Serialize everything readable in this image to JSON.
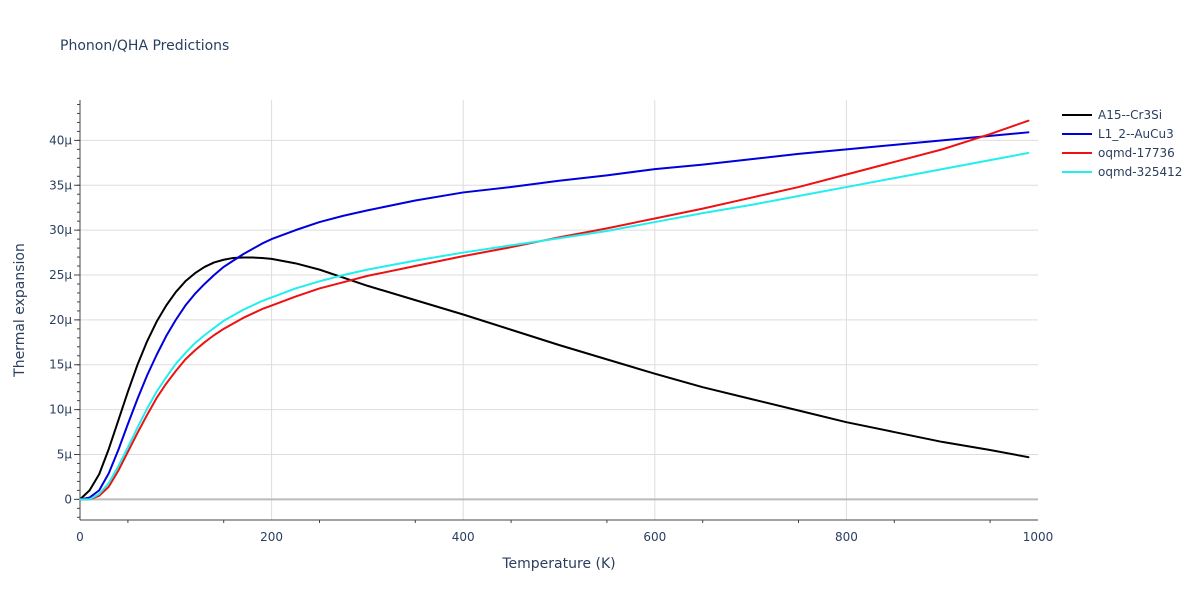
{
  "chart_data": {
    "type": "line",
    "title": "Phonon/QHA Predictions",
    "xlabel": "Temperature (K)",
    "ylabel": "Thermal expansion",
    "xlim": [
      0,
      1000
    ],
    "ylim": [
      -2.3e-06,
      4.45e-05
    ],
    "x_ticks": [
      0,
      200,
      400,
      600,
      800,
      1000
    ],
    "x_tick_labels": [
      "0",
      "200",
      "400",
      "600",
      "800",
      "1000"
    ],
    "y_ticks": [
      0,
      5e-06,
      1e-05,
      1.5e-05,
      2e-05,
      2.5e-05,
      3e-05,
      3.5e-05,
      4e-05
    ],
    "y_tick_labels": [
      "0",
      "5μ",
      "10μ",
      "15μ",
      "20μ",
      "25μ",
      "30μ",
      "35μ",
      "40μ"
    ],
    "grid": true,
    "legend_position": "top-right",
    "x": [
      0,
      10,
      20,
      30,
      40,
      50,
      60,
      70,
      80,
      90,
      100,
      110,
      120,
      130,
      140,
      150,
      160,
      170,
      180,
      190,
      200,
      225,
      250,
      275,
      300,
      350,
      400,
      450,
      500,
      550,
      600,
      650,
      700,
      750,
      800,
      850,
      900,
      950,
      990
    ],
    "series": [
      {
        "name": "A15--Cr3Si",
        "color": "#000000",
        "values": [
          0,
          1e-06,
          2.8e-06,
          5.6e-06,
          8.8e-06,
          1.2e-05,
          1.5e-05,
          1.76e-05,
          1.98e-05,
          2.16e-05,
          2.31e-05,
          2.43e-05,
          2.52e-05,
          2.59e-05,
          2.64e-05,
          2.67e-05,
          2.69e-05,
          2.695e-05,
          2.695e-05,
          2.69e-05,
          2.68e-05,
          2.63e-05,
          2.56e-05,
          2.47e-05,
          2.38e-05,
          2.22e-05,
          2.06e-05,
          1.89e-05,
          1.72e-05,
          1.56e-05,
          1.4e-05,
          1.25e-05,
          1.12e-05,
          9.9e-06,
          8.6e-06,
          7.5e-06,
          6.4e-06,
          5.5e-06,
          4.7e-06
        ]
      },
      {
        "name": "L1_2--AuCu3",
        "color": "#0000dd",
        "values": [
          0,
          2e-07,
          1e-06,
          2.9e-06,
          5.5e-06,
          8.4e-06,
          1.12e-05,
          1.38e-05,
          1.61e-05,
          1.82e-05,
          2e-05,
          2.16e-05,
          2.29e-05,
          2.4e-05,
          2.5e-05,
          2.59e-05,
          2.66e-05,
          2.73e-05,
          2.79e-05,
          2.85e-05,
          2.9e-05,
          3e-05,
          3.09e-05,
          3.16e-05,
          3.22e-05,
          3.33e-05,
          3.42e-05,
          3.48e-05,
          3.55e-05,
          3.61e-05,
          3.68e-05,
          3.73e-05,
          3.79e-05,
          3.85e-05,
          3.9e-05,
          3.95e-05,
          4e-05,
          4.05e-05,
          4.09e-05
        ]
      },
      {
        "name": "oqmd-17736",
        "color": "#ee1111",
        "values": [
          0,
          0,
          4e-07,
          1.4e-06,
          3.2e-06,
          5.3e-06,
          7.4e-06,
          9.4e-06,
          1.13e-05,
          1.29e-05,
          1.43e-05,
          1.56e-05,
          1.66e-05,
          1.75e-05,
          1.83e-05,
          1.9e-05,
          1.96e-05,
          2.02e-05,
          2.07e-05,
          2.12e-05,
          2.16e-05,
          2.26e-05,
          2.35e-05,
          2.42e-05,
          2.49e-05,
          2.6e-05,
          2.71e-05,
          2.81e-05,
          2.92e-05,
          3.02e-05,
          3.13e-05,
          3.24e-05,
          3.36e-05,
          3.48e-05,
          3.62e-05,
          3.76e-05,
          3.9e-05,
          4.07e-05,
          4.22e-05
        ]
      },
      {
        "name": "oqmd-325412",
        "color": "#22eeee",
        "values": [
          0,
          0,
          6e-07,
          1.8e-06,
          3.7e-06,
          5.8e-06,
          8e-06,
          1.01e-05,
          1.2e-05,
          1.36e-05,
          1.51e-05,
          1.63e-05,
          1.74e-05,
          1.83e-05,
          1.91e-05,
          1.99e-05,
          2.05e-05,
          2.11e-05,
          2.16e-05,
          2.21e-05,
          2.25e-05,
          2.35e-05,
          2.43e-05,
          2.5e-05,
          2.56e-05,
          2.66e-05,
          2.75e-05,
          2.83e-05,
          2.91e-05,
          2.99e-05,
          3.09e-05,
          3.19e-05,
          3.28e-05,
          3.38e-05,
          3.48e-05,
          3.58e-05,
          3.68e-05,
          3.78e-05,
          3.86e-05
        ]
      }
    ]
  }
}
